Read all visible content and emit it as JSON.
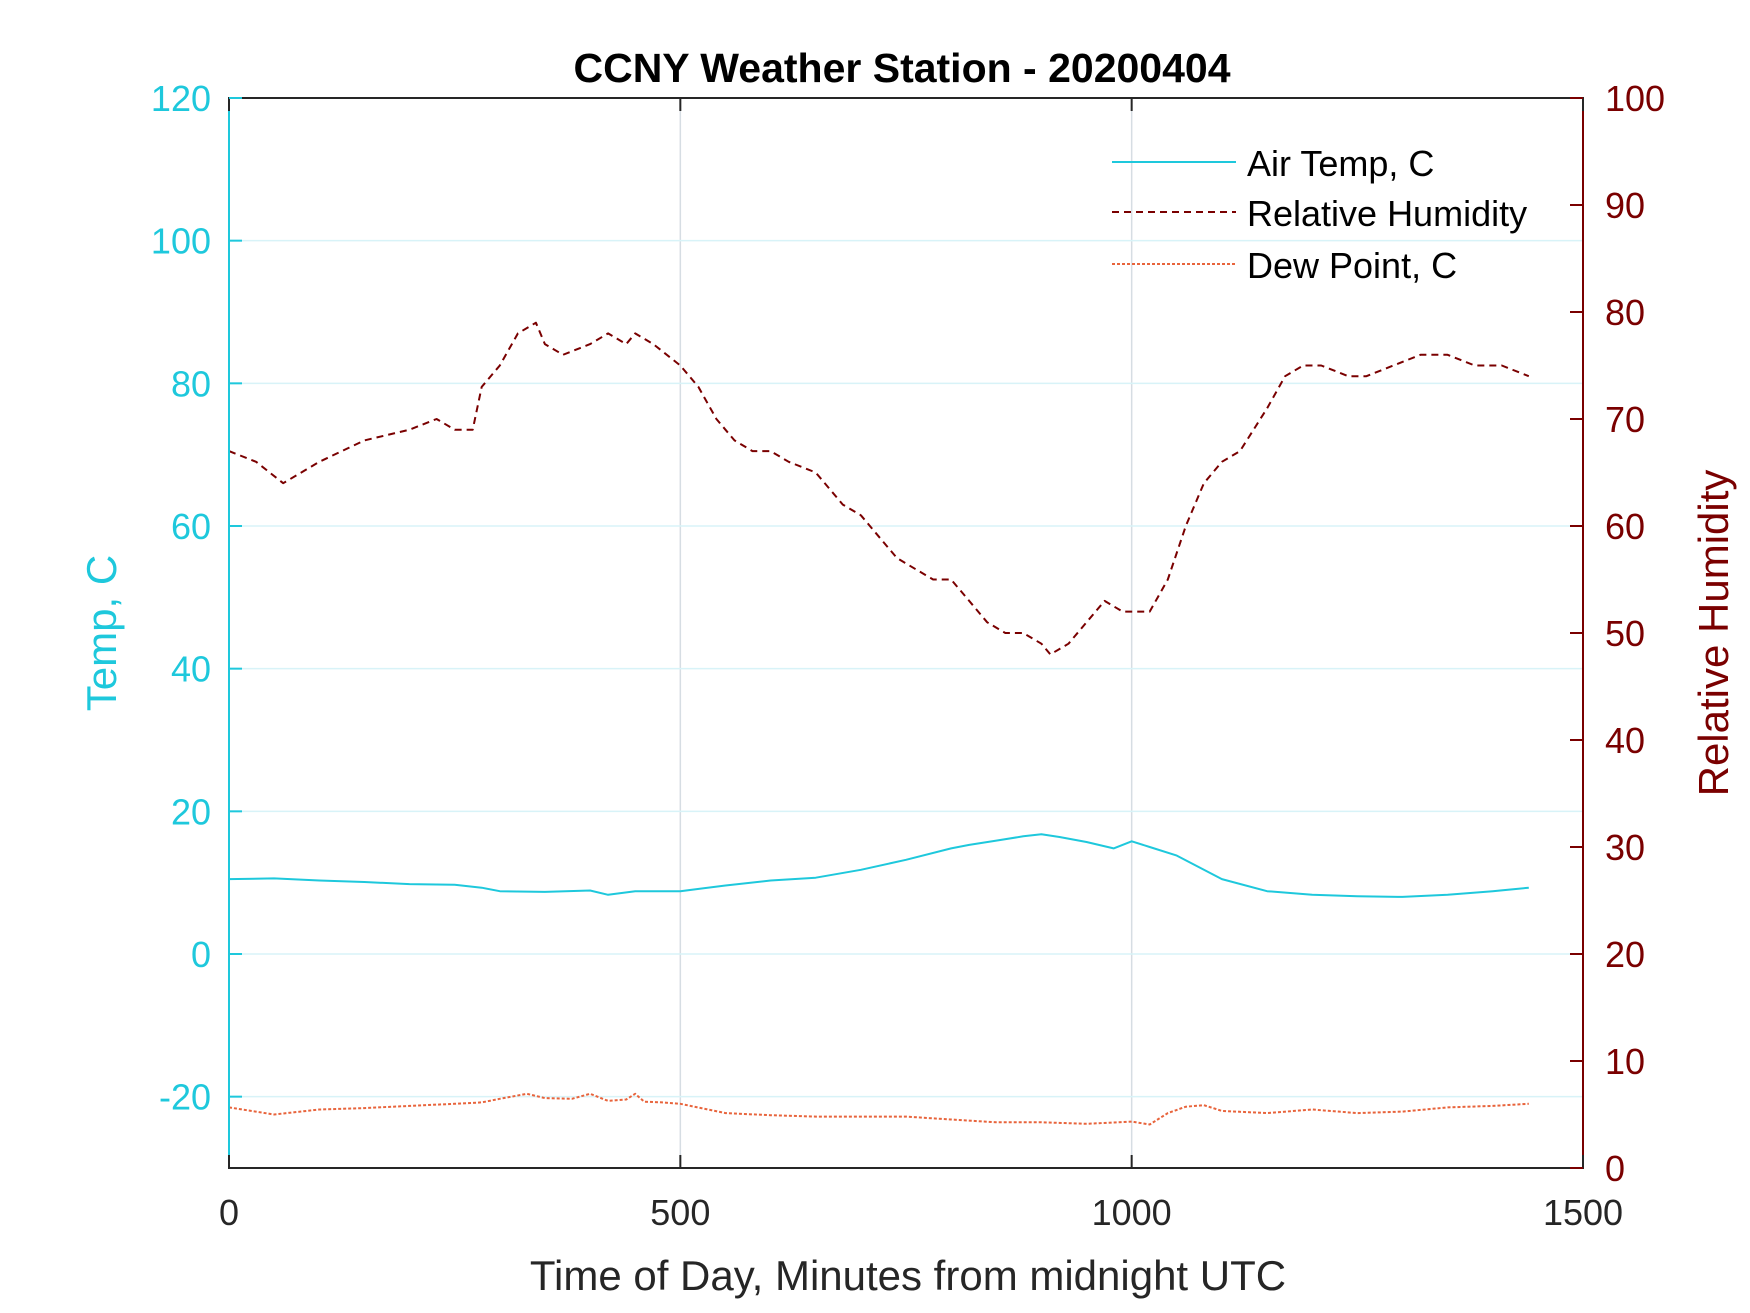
{
  "chart_data": {
    "type": "line",
    "title": "CCNY Weather Station - 20200404",
    "xlabel": "Time of Day, Minutes from midnight UTC",
    "ylabel_left": "Temp, C",
    "ylabel_right": "Relative Humidity",
    "xlim": [
      0,
      1500
    ],
    "ylim_left": [
      -30,
      120
    ],
    "ylim_right": [
      0,
      100
    ],
    "xticks": [
      0,
      500,
      1000,
      1500
    ],
    "yticks_left": [
      -20,
      0,
      20,
      40,
      60,
      80,
      100,
      120
    ],
    "yticks_right": [
      0,
      10,
      20,
      30,
      40,
      50,
      60,
      70,
      80,
      90,
      100
    ],
    "grid": true,
    "legend_position": "top-right",
    "colors": {
      "left_axis": "#1ec8dc",
      "right_axis": "#7a0000",
      "air_temp": "#1ec8dc",
      "relative_humidity": "#7a0000",
      "dew_point": "#e8643c",
      "x_grid": "#d6dde3",
      "y_grid": "#d8f3f8"
    },
    "series": [
      {
        "name": "Air Temp, C",
        "axis": "left",
        "style": "solid",
        "x": [
          0,
          50,
          100,
          150,
          200,
          250,
          280,
          300,
          350,
          400,
          420,
          450,
          500,
          550,
          600,
          650,
          700,
          750,
          800,
          820,
          850,
          880,
          900,
          920,
          950,
          980,
          1000,
          1020,
          1050,
          1100,
          1150,
          1200,
          1250,
          1300,
          1350,
          1400,
          1440
        ],
        "y": [
          10.5,
          10.6,
          10.3,
          10.1,
          9.8,
          9.7,
          9.3,
          8.8,
          8.7,
          8.9,
          8.3,
          8.8,
          8.8,
          9.6,
          10.3,
          10.7,
          11.8,
          13.2,
          14.8,
          15.3,
          15.9,
          16.5,
          16.8,
          16.4,
          15.7,
          14.8,
          15.8,
          15.0,
          13.8,
          10.5,
          8.8,
          8.3,
          8.1,
          8.0,
          8.3,
          8.8,
          9.3
        ]
      },
      {
        "name": "Relative Humidity",
        "axis": "right",
        "style": "dashed",
        "x": [
          0,
          30,
          60,
          100,
          150,
          200,
          230,
          250,
          270,
          280,
          300,
          320,
          340,
          350,
          370,
          400,
          420,
          440,
          450,
          470,
          500,
          520,
          540,
          560,
          580,
          600,
          620,
          650,
          680,
          700,
          720,
          740,
          760,
          780,
          800,
          820,
          840,
          860,
          880,
          900,
          910,
          930,
          950,
          970,
          990,
          1000,
          1020,
          1040,
          1060,
          1080,
          1100,
          1120,
          1150,
          1170,
          1190,
          1210,
          1240,
          1260,
          1290,
          1320,
          1350,
          1380,
          1410,
          1440
        ],
        "y": [
          67,
          66,
          64,
          66,
          68,
          69,
          70,
          69,
          69,
          73,
          75,
          78,
          79,
          77,
          76,
          77,
          78,
          77,
          78,
          77,
          75,
          73,
          70,
          68,
          67,
          67,
          66,
          65,
          62,
          61,
          59,
          57,
          56,
          55,
          55,
          53,
          51,
          50,
          50,
          49,
          48,
          49,
          51,
          53,
          52,
          52,
          52,
          55,
          60,
          64,
          66,
          67,
          71,
          74,
          75,
          75,
          74,
          74,
          75,
          76,
          76,
          75,
          75,
          74
        ]
      },
      {
        "name": "Dew Point, C",
        "axis": "left",
        "style": "dotted",
        "x": [
          0,
          50,
          100,
          150,
          200,
          250,
          280,
          300,
          330,
          350,
          380,
          400,
          420,
          440,
          450,
          460,
          480,
          500,
          550,
          600,
          650,
          700,
          750,
          800,
          850,
          900,
          950,
          1000,
          1020,
          1040,
          1060,
          1080,
          1100,
          1150,
          1200,
          1250,
          1300,
          1350,
          1400,
          1440
        ],
        "y": [
          -21.5,
          -22.5,
          -21.8,
          -21.6,
          -21.3,
          -21.0,
          -20.8,
          -20.3,
          -19.6,
          -20.2,
          -20.3,
          -19.6,
          -20.6,
          -20.4,
          -19.6,
          -20.7,
          -20.8,
          -21.0,
          -22.3,
          -22.6,
          -22.8,
          -22.8,
          -22.8,
          -23.2,
          -23.6,
          -23.6,
          -23.8,
          -23.5,
          -23.9,
          -22.3,
          -21.4,
          -21.2,
          -22.0,
          -22.3,
          -21.8,
          -22.3,
          -22.1,
          -21.5,
          -21.3,
          -21.0
        ]
      }
    ]
  }
}
